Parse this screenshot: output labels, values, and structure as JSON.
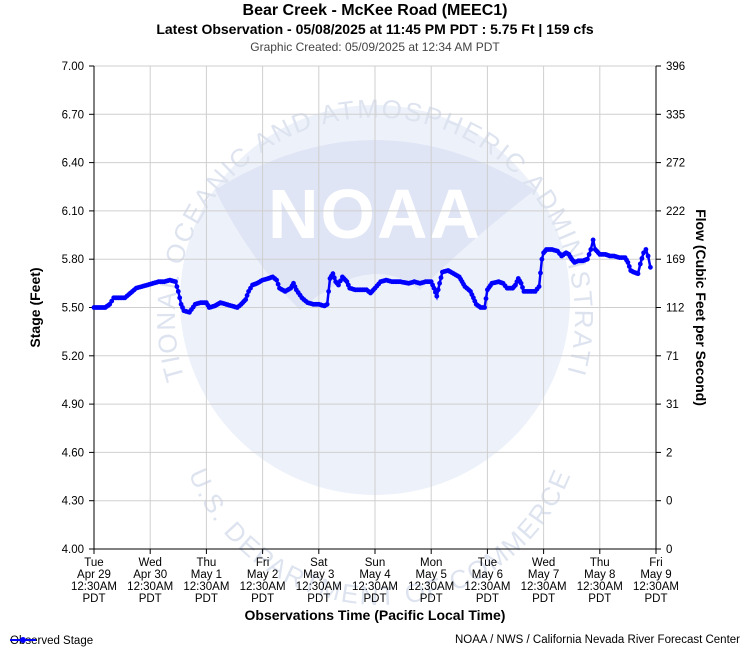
{
  "header": {
    "title": "Bear Creek - McKee Road (MEEC1)",
    "latest": "Latest Observation - 05/08/2025 at 11:45 PM PDT : 5.75 Ft | 159 cfs",
    "created": "Graphic Created: 05/09/2025 at 12:34 AM PDT"
  },
  "watermark": {
    "text": "NOAA",
    "icon": "noaa-logo-watermark",
    "arc_top": "NATIONAL OCEANIC AND ATMOSPHERIC ADMINISTRATION",
    "arc_bottom": "U.S. DEPARTMENT OF COMMERCE"
  },
  "legend": {
    "label": "Observed Stage",
    "color": "#0000ff"
  },
  "credit": "NOAA / NWS / California Nevada River Forecast Center",
  "chart_data": {
    "type": "line",
    "title": "Bear Creek - McKee Road (MEEC1)",
    "xlabel": "Observations Time (Pacific Local Time)",
    "ylabel": "Stage (Feet)",
    "y2label": "Flow (Cubic Feet per Second)",
    "ylim": [
      4.0,
      7.0
    ],
    "xlim": [
      0,
      10
    ],
    "grid": true,
    "legend_position": "bottom-left",
    "line_color": "#0000ff",
    "y_ticks": [
      "7.00",
      "6.70",
      "6.40",
      "6.10",
      "5.80",
      "5.50",
      "5.20",
      "4.90",
      "4.60",
      "4.30",
      "4.00"
    ],
    "y_tick_values": [
      7.0,
      6.7,
      6.4,
      6.1,
      5.8,
      5.5,
      5.2,
      4.9,
      4.6,
      4.3,
      4.0
    ],
    "y2_ticks": [
      "396",
      "335",
      "272",
      "222",
      "169",
      "112",
      "71",
      "31",
      "2",
      "0",
      "0"
    ],
    "x_ticks": [
      [
        "Tue",
        "Apr 29",
        "12:30AM",
        "PDT"
      ],
      [
        "Wed",
        "Apr 30",
        "12:30AM",
        "PDT"
      ],
      [
        "Thu",
        "May 1",
        "12:30AM",
        "PDT"
      ],
      [
        "Fri",
        "May 2",
        "12:30AM",
        "PDT"
      ],
      [
        "Sat",
        "May 3",
        "12:30AM",
        "PDT"
      ],
      [
        "Sun",
        "May 4",
        "12:30AM",
        "PDT"
      ],
      [
        "Mon",
        "May 5",
        "12:30AM",
        "PDT"
      ],
      [
        "Tue",
        "May 6",
        "12:30AM",
        "PDT"
      ],
      [
        "Wed",
        "May 7",
        "12:30AM",
        "PDT"
      ],
      [
        "Thu",
        "May 8",
        "12:30AM",
        "PDT"
      ],
      [
        "Fri",
        "May 9",
        "12:30AM",
        "PDT"
      ]
    ],
    "series": [
      {
        "name": "Observed Stage",
        "points": [
          [
            0.0,
            5.5
          ],
          [
            0.2,
            5.5
          ],
          [
            0.28,
            5.52
          ],
          [
            0.35,
            5.56
          ],
          [
            0.55,
            5.56
          ],
          [
            0.65,
            5.59
          ],
          [
            0.75,
            5.62
          ],
          [
            0.85,
            5.63
          ],
          [
            0.95,
            5.64
          ],
          [
            1.05,
            5.65
          ],
          [
            1.15,
            5.66
          ],
          [
            1.25,
            5.66
          ],
          [
            1.35,
            5.67
          ],
          [
            1.45,
            5.66
          ],
          [
            1.5,
            5.6
          ],
          [
            1.55,
            5.52
          ],
          [
            1.6,
            5.48
          ],
          [
            1.7,
            5.47
          ],
          [
            1.8,
            5.52
          ],
          [
            1.9,
            5.53
          ],
          [
            2.0,
            5.53
          ],
          [
            2.05,
            5.5
          ],
          [
            2.15,
            5.51
          ],
          [
            2.2,
            5.52
          ],
          [
            2.25,
            5.53
          ],
          [
            2.35,
            5.52
          ],
          [
            2.45,
            5.51
          ],
          [
            2.55,
            5.5
          ],
          [
            2.62,
            5.52
          ],
          [
            2.7,
            5.55
          ],
          [
            2.75,
            5.6
          ],
          [
            2.82,
            5.64
          ],
          [
            2.9,
            5.65
          ],
          [
            3.0,
            5.67
          ],
          [
            3.1,
            5.68
          ],
          [
            3.18,
            5.69
          ],
          [
            3.25,
            5.67
          ],
          [
            3.3,
            5.62
          ],
          [
            3.4,
            5.6
          ],
          [
            3.5,
            5.62
          ],
          [
            3.55,
            5.65
          ],
          [
            3.6,
            5.61
          ],
          [
            3.7,
            5.56
          ],
          [
            3.8,
            5.53
          ],
          [
            3.9,
            5.52
          ],
          [
            4.0,
            5.52
          ],
          [
            4.1,
            5.51
          ],
          [
            4.15,
            5.52
          ],
          [
            4.2,
            5.68
          ],
          [
            4.25,
            5.71
          ],
          [
            4.3,
            5.66
          ],
          [
            4.35,
            5.64
          ],
          [
            4.42,
            5.69
          ],
          [
            4.5,
            5.66
          ],
          [
            4.55,
            5.62
          ],
          [
            4.65,
            5.61
          ],
          [
            4.75,
            5.61
          ],
          [
            4.85,
            5.61
          ],
          [
            4.92,
            5.59
          ],
          [
            5.0,
            5.62
          ],
          [
            5.1,
            5.66
          ],
          [
            5.2,
            5.67
          ],
          [
            5.3,
            5.66
          ],
          [
            5.45,
            5.66
          ],
          [
            5.6,
            5.65
          ],
          [
            5.7,
            5.66
          ],
          [
            5.8,
            5.65
          ],
          [
            5.9,
            5.66
          ],
          [
            6.0,
            5.66
          ],
          [
            6.05,
            5.62
          ],
          [
            6.1,
            5.57
          ],
          [
            6.15,
            5.65
          ],
          [
            6.2,
            5.72
          ],
          [
            6.3,
            5.73
          ],
          [
            6.4,
            5.71
          ],
          [
            6.5,
            5.69
          ],
          [
            6.55,
            5.66
          ],
          [
            6.6,
            5.63
          ],
          [
            6.7,
            5.6
          ],
          [
            6.75,
            5.56
          ],
          [
            6.8,
            5.52
          ],
          [
            6.88,
            5.5
          ],
          [
            6.95,
            5.5
          ],
          [
            7.0,
            5.61
          ],
          [
            7.08,
            5.65
          ],
          [
            7.2,
            5.66
          ],
          [
            7.28,
            5.65
          ],
          [
            7.35,
            5.62
          ],
          [
            7.45,
            5.62
          ],
          [
            7.5,
            5.64
          ],
          [
            7.55,
            5.68
          ],
          [
            7.6,
            5.65
          ],
          [
            7.65,
            5.6
          ],
          [
            7.75,
            5.6
          ],
          [
            7.85,
            5.6
          ],
          [
            7.92,
            5.63
          ],
          [
            7.97,
            5.8
          ],
          [
            8.0,
            5.84
          ],
          [
            8.05,
            5.86
          ],
          [
            8.15,
            5.86
          ],
          [
            8.25,
            5.85
          ],
          [
            8.32,
            5.82
          ],
          [
            8.4,
            5.84
          ],
          [
            8.45,
            5.83
          ],
          [
            8.5,
            5.8
          ],
          [
            8.55,
            5.78
          ],
          [
            8.62,
            5.79
          ],
          [
            8.7,
            5.79
          ],
          [
            8.78,
            5.8
          ],
          [
            8.84,
            5.86
          ],
          [
            8.88,
            5.92
          ],
          [
            8.92,
            5.86
          ],
          [
            9.0,
            5.83
          ],
          [
            9.1,
            5.83
          ],
          [
            9.18,
            5.82
          ],
          [
            9.25,
            5.82
          ],
          [
            9.35,
            5.81
          ],
          [
            9.45,
            5.81
          ],
          [
            9.5,
            5.78
          ],
          [
            9.55,
            5.73
          ],
          [
            9.6,
            5.72
          ],
          [
            9.68,
            5.71
          ],
          [
            9.72,
            5.77
          ],
          [
            9.78,
            5.84
          ],
          [
            9.82,
            5.86
          ],
          [
            9.86,
            5.82
          ],
          [
            9.9,
            5.75
          ]
        ]
      }
    ]
  }
}
